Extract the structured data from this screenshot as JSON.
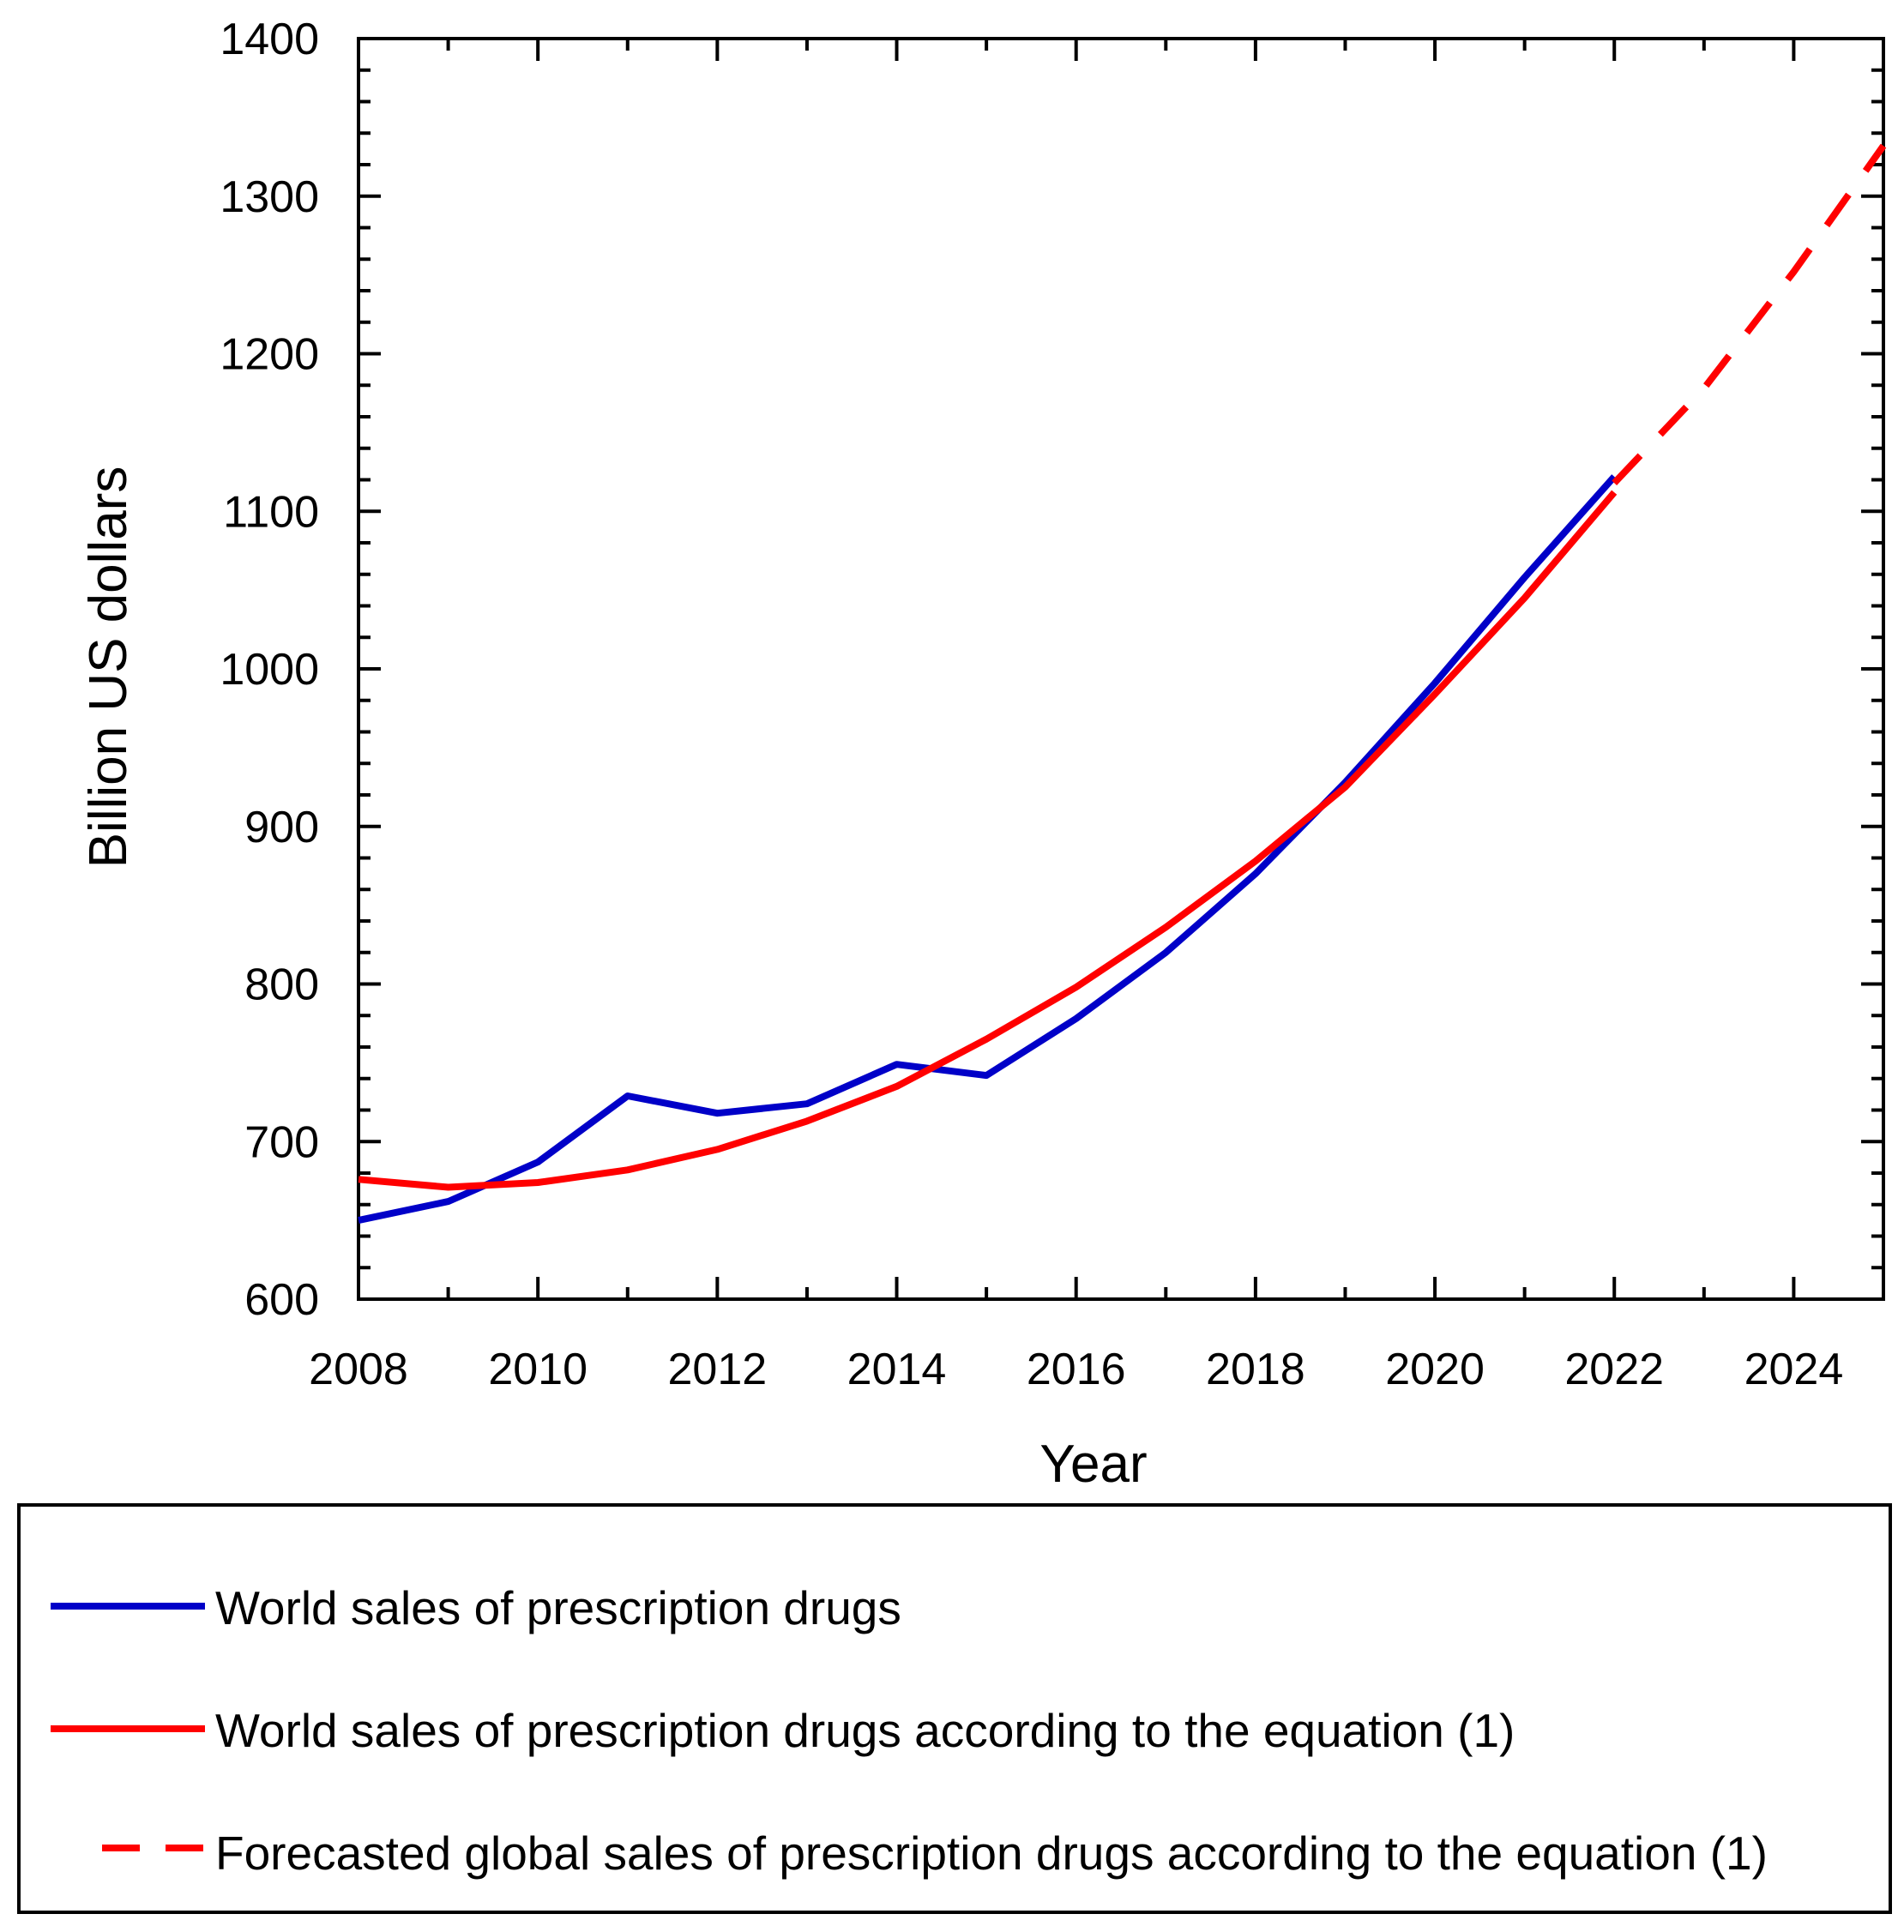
{
  "chart_data": {
    "type": "line",
    "title": "",
    "xlabel": "Year",
    "ylabel": "Billion US dollars",
    "xlim": [
      2008,
      2025
    ],
    "ylim": [
      600,
      1400
    ],
    "xticks": [
      2008,
      2010,
      2012,
      2014,
      2016,
      2018,
      2020,
      2022,
      2024
    ],
    "yticks": [
      600,
      700,
      800,
      900,
      1000,
      1100,
      1200,
      1300,
      1400
    ],
    "grid": false,
    "legend_position": "bottom",
    "series": [
      {
        "name": "World sales of prescription drugs",
        "color": "#0000c8",
        "style": "solid",
        "x": [
          2008,
          2009,
          2010,
          2011,
          2012,
          2013,
          2014,
          2015,
          2016,
          2017,
          2018,
          2019,
          2020,
          2021,
          2022
        ],
        "y": [
          650,
          662,
          687,
          729,
          718,
          724,
          749,
          742,
          778,
          820,
          870,
          928,
          991,
          1058,
          1122
        ]
      },
      {
        "name": "World sales of prescription drugs according to the equation (1)",
        "color": "#ff0000",
        "style": "solid",
        "x": [
          2008,
          2009,
          2010,
          2011,
          2012,
          2013,
          2014,
          2015,
          2016,
          2017,
          2018,
          2019,
          2020,
          2021,
          2022
        ],
        "y": [
          676,
          671,
          674,
          682,
          695,
          713,
          735,
          765,
          798,
          836,
          878,
          925,
          984,
          1045,
          1112
        ]
      },
      {
        "name": "Forecasted global sales of prescription drugs according to the equation (1)",
        "color": "#ff0000",
        "style": "dashed",
        "x": [
          2022,
          2023,
          2024,
          2025
        ],
        "y": [
          1118,
          1178,
          1252,
          1332
        ]
      }
    ]
  }
}
